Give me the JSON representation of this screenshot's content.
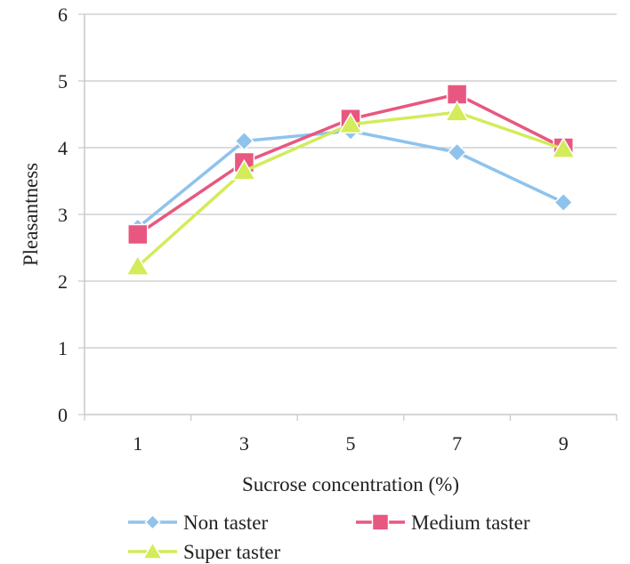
{
  "chart_data": {
    "type": "line",
    "xlabel": "Sucrose concentration (%)",
    "ylabel": "Pleasantness",
    "categories": [
      "1",
      "3",
      "5",
      "7",
      "9"
    ],
    "ylim": [
      0,
      6
    ],
    "yticks": [
      "0",
      "1",
      "2",
      "3",
      "4",
      "5",
      "6"
    ],
    "grid": "horizontal",
    "legend_position": "bottom",
    "series": [
      {
        "name": "Non taster",
        "values": [
          2.8,
          4.1,
          4.25,
          3.93,
          3.18
        ],
        "color": "#8fc3ec",
        "marker": "diamond"
      },
      {
        "name": "Medium taster",
        "values": [
          2.7,
          3.78,
          4.43,
          4.8,
          4.0
        ],
        "color": "#e8577f",
        "marker": "square"
      },
      {
        "name": "Super taster",
        "values": [
          2.22,
          3.65,
          4.35,
          4.53,
          3.98
        ],
        "color": "#d2ec5a",
        "marker": "triangle"
      }
    ]
  }
}
